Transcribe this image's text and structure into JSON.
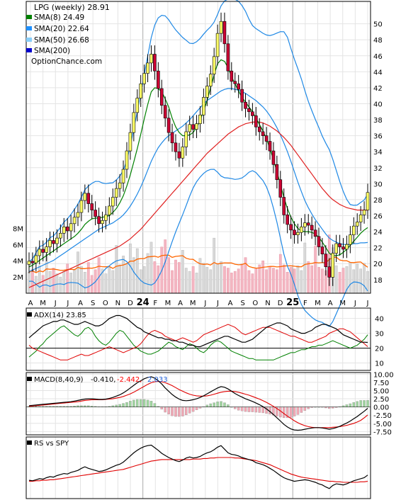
{
  "chart_data": {
    "type": "line",
    "title": "LPG (weekly) 28.91",
    "watermark": "OptionChance.com",
    "legend": [
      {
        "label": "SMA(8) 24.49",
        "color": "#008000"
      },
      {
        "label": "SMA(20) 22.64",
        "color": "#1e90ff"
      },
      {
        "label": "SMA(50) 26.68",
        "color": "#87cefa"
      },
      {
        "label": "SMA(200)",
        "color": "#0000cd"
      }
    ],
    "x_labels": [
      "A",
      "M",
      "J",
      "J",
      "A",
      "S",
      "O",
      "N",
      "D",
      "24",
      "F",
      "M",
      "A",
      "M",
      "J",
      "J",
      "A",
      "S",
      "O",
      "N",
      "D",
      "25",
      "F",
      "M",
      "A",
      "M",
      "J",
      "J"
    ],
    "year_labels": [
      "24",
      "25"
    ],
    "price_axis": {
      "ticks": [
        18,
        20,
        22,
        24,
        26,
        28,
        30,
        32,
        34,
        36,
        38,
        40,
        42,
        44,
        46,
        48,
        50
      ],
      "ylim": [
        16.3,
        52.8
      ]
    },
    "price_close": [
      20.3,
      20.1,
      21.0,
      21.8,
      21.4,
      22.1,
      22.9,
      22.5,
      23.2,
      23.8,
      24.6,
      24.1,
      25.0,
      25.8,
      26.4,
      27.9,
      28.8,
      27.5,
      26.7,
      25.9,
      25.0,
      25.4,
      26.1,
      27.2,
      28.3,
      29.4,
      30.1,
      31.8,
      34.1,
      36.4,
      38.9,
      40.7,
      42.5,
      43.8,
      45.1,
      46.2,
      44.1,
      41.9,
      39.8,
      38.2,
      36.4,
      35.1,
      34.0,
      33.2,
      34.6,
      36.5,
      37.4,
      36.8,
      37.5,
      38.6,
      40.8,
      42.2,
      43.7,
      45.9,
      48.8,
      50.3,
      47.5,
      44.1,
      42.8,
      42.5,
      41.8,
      40.2,
      39.4,
      39.0,
      38.5,
      37.1,
      36.5,
      36.0,
      35.3,
      34.1,
      32.4,
      30.5,
      28.3,
      26.1,
      24.9,
      24.2,
      23.6,
      23.9,
      24.6,
      25.1,
      24.8,
      24.2,
      23.4,
      22.1,
      21.2,
      19.6,
      18.3,
      21.3,
      22.5,
      22.1,
      21.8,
      22.4,
      23.6,
      24.7,
      25.2,
      26.1,
      26.7,
      28.9
    ],
    "sma8": [
      19.6,
      19.8,
      20.1,
      20.4,
      20.7,
      21.0,
      21.3,
      21.6,
      21.9,
      22.2,
      22.5,
      22.8,
      23.1,
      23.4,
      23.8,
      24.3,
      24.9,
      25.3,
      25.6,
      25.7,
      25.7,
      25.8,
      25.9,
      26.0,
      26.4,
      26.9,
      27.6,
      28.5,
      29.7,
      31.1,
      32.7,
      34.4,
      36.2,
      38.1,
      39.9,
      41.5,
      42.0,
      41.9,
      41.5,
      40.6,
      39.6,
      38.2,
      37.1,
      36.4,
      36.0,
      36.0,
      36.1,
      36.4,
      37.0,
      37.9,
      39.1,
      40.4,
      42.0,
      43.6,
      45.0,
      45.5,
      45.3,
      44.5,
      43.4,
      42.5,
      41.6,
      40.8,
      40.2,
      39.6,
      39.0,
      38.2,
      37.4,
      36.6,
      35.6,
      34.4,
      33.0,
      31.5,
      29.9,
      28.3,
      26.9,
      25.8,
      25.0,
      24.4,
      24.1,
      24.0,
      24.0,
      23.9,
      23.7,
      23.3,
      22.7,
      22.0,
      21.3,
      21.0,
      21.0,
      21.1,
      21.4,
      21.8,
      22.3,
      22.8,
      23.3,
      23.8,
      24.2,
      24.5
    ],
    "sma20": [
      19.0,
      19.2,
      19.4,
      19.6,
      19.8,
      20.0,
      20.2,
      20.4,
      20.7,
      21.0,
      21.3,
      21.6,
      21.9,
      22.2,
      22.5,
      22.8,
      23.1,
      23.4,
      23.7,
      24.0,
      24.3,
      24.5,
      24.7,
      24.9,
      25.1,
      25.4,
      25.7,
      26.1,
      26.6,
      27.2,
      27.9,
      28.7,
      29.6,
      30.6,
      31.7,
      32.8,
      33.7,
      34.5,
      35.1,
      35.6,
      36.0,
      36.3,
      36.6,
      36.9,
      37.2,
      37.6,
      38.0,
      38.5,
      39.0,
      39.5,
      40.0,
      40.4,
      40.7,
      41.0,
      41.3,
      41.6,
      41.8,
      41.9,
      41.9,
      41.8,
      41.7,
      41.5,
      41.3,
      41.0,
      40.7,
      40.4,
      40.0,
      39.6,
      39.1,
      38.5,
      37.8,
      37.0,
      36.1,
      35.1,
      34.0,
      32.8,
      31.5,
      30.2,
      29.0,
      27.9,
      27.0,
      26.2,
      25.5,
      24.9,
      24.3,
      23.7,
      23.2,
      22.9,
      22.7,
      22.5,
      22.4,
      22.4,
      22.4,
      22.5,
      22.5,
      22.6,
      22.6,
      22.64
    ],
    "sma50": [
      17.0,
      17.2,
      17.4,
      17.6,
      17.8,
      18.0,
      18.2,
      18.4,
      18.6,
      18.8,
      19.0,
      19.2,
      19.4,
      19.6,
      19.8,
      20.0,
      20.2,
      20.4,
      20.6,
      20.8,
      21.0,
      21.2,
      21.4,
      21.6,
      21.8,
      22.0,
      22.2,
      22.5,
      22.8,
      23.1,
      23.5,
      23.9,
      24.3,
      24.8,
      25.3,
      25.8,
      26.3,
      26.8,
      27.3,
      27.8,
      28.3,
      28.8,
      29.3,
      29.8,
      30.3,
      30.8,
      31.3,
      31.8,
      32.3,
      32.8,
      33.3,
      33.8,
      34.2,
      34.6,
      35.0,
      35.4,
      35.8,
      36.2,
      36.5,
      36.8,
      37.1,
      37.3,
      37.5,
      37.6,
      37.7,
      37.7,
      37.7,
      37.6,
      37.4,
      37.2,
      36.9,
      36.6,
      36.2,
      35.8,
      35.3,
      34.8,
      34.2,
      33.6,
      33.0,
      32.4,
      31.8,
      31.2,
      30.6,
      30.0,
      29.4,
      28.9,
      28.4,
      28.0,
      27.7,
      27.4,
      27.2,
      27.0,
      26.9,
      26.8,
      26.7,
      26.7,
      26.7,
      26.68
    ],
    "volume_axis": {
      "ticks": [
        "2M",
        "4M",
        "6M",
        "8M"
      ],
      "max": 8.3
    },
    "volume": [
      2.6,
      2.9,
      2.1,
      3.4,
      2.2,
      4.8,
      2.7,
      3.1,
      2.4,
      2.0,
      2.8,
      3.6,
      2.5,
      2.9,
      5.1,
      3.3,
      2.6,
      3.8,
      2.2,
      2.9,
      4.4,
      3.0,
      2.4,
      3.2,
      2.8,
      5.9,
      3.5,
      4.6,
      3.7,
      6.1,
      4.4,
      5.5,
      2.9,
      3.3,
      4.9,
      6.3,
      3.9,
      3.4,
      5.7,
      6.6,
      4.4,
      2.8,
      4.1,
      3.8,
      5.3,
      3.1,
      2.7,
      3.3,
      2.5,
      4.3,
      3.7,
      3.2,
      2.9,
      6.8,
      3.6,
      3.9,
      3.3,
      3.1,
      2.5,
      2.7,
      3.0,
      3.6,
      4.4,
      2.8,
      2.4,
      3.1,
      3.5,
      4.0,
      2.9,
      3.3,
      3.1,
      2.9,
      4.8,
      3.5,
      2.6,
      3.2,
      3.0,
      3.4,
      2.8,
      6.2,
      3.9,
      3.4,
      5.8,
      3.2,
      3.0,
      2.8,
      7.2,
      5.6,
      3.4,
      2.6,
      3.1,
      3.3,
      3.8,
      2.9,
      3.6,
      3.0,
      3.7,
      2.7
    ],
    "volume_avg_color": "#ff6600",
    "adx": {
      "label": "ADX(14) 23.85",
      "ticks": [
        10,
        20,
        30,
        40
      ],
      "ylim": [
        5,
        47
      ]
    },
    "adx_line": [
      27,
      29,
      31,
      33,
      35,
      36,
      37,
      38,
      38,
      39,
      39,
      38,
      37,
      36,
      36,
      37,
      38,
      37,
      36,
      35,
      35,
      36,
      38,
      40,
      41,
      42,
      42,
      41,
      40,
      38,
      36,
      34,
      33,
      31,
      30,
      29,
      28,
      27,
      27,
      26,
      26,
      25,
      25,
      24,
      24,
      23,
      22,
      22,
      21,
      21,
      22,
      23,
      24,
      25,
      26,
      27,
      28,
      28,
      27,
      26,
      25,
      24,
      24,
      25,
      26,
      28,
      30,
      32,
      34,
      35,
      36,
      37,
      37,
      36,
      35,
      33,
      32,
      31,
      30,
      30,
      31,
      32,
      34,
      35,
      36,
      36,
      35,
      34,
      33,
      31,
      29,
      28,
      27,
      26,
      25,
      24,
      24,
      23.85
    ],
    "plus_di": [
      14,
      16,
      18,
      21,
      23,
      26,
      28,
      30,
      32,
      34,
      35,
      33,
      31,
      29,
      28,
      30,
      33,
      34,
      32,
      28,
      25,
      23,
      22,
      24,
      27,
      30,
      32,
      31,
      28,
      25,
      22,
      20,
      18,
      17,
      16,
      16,
      17,
      18,
      20,
      22,
      24,
      23,
      21,
      20,
      19,
      21,
      23,
      22,
      20,
      18,
      17,
      19,
      22,
      24,
      25,
      24,
      22,
      20,
      18,
      17,
      16,
      15,
      14,
      13,
      13,
      12,
      12,
      12,
      12,
      12,
      12,
      13,
      14,
      15,
      16,
      17,
      17,
      18,
      19,
      19,
      20,
      21,
      21,
      22,
      22,
      23,
      24,
      25,
      24,
      23,
      22,
      21,
      20,
      21,
      22,
      24,
      26,
      29
    ],
    "minus_di": [
      22,
      20,
      19,
      18,
      17,
      16,
      15,
      14,
      13,
      12,
      12,
      12,
      13,
      14,
      15,
      16,
      15,
      15,
      16,
      17,
      18,
      19,
      20,
      21,
      20,
      19,
      18,
      17,
      18,
      19,
      20,
      21,
      23,
      26,
      29,
      31,
      32,
      31,
      30,
      28,
      27,
      26,
      25,
      26,
      27,
      26,
      25,
      24,
      25,
      27,
      29,
      30,
      31,
      32,
      33,
      34,
      35,
      36,
      35,
      34,
      32,
      30,
      29,
      30,
      31,
      32,
      33,
      34,
      34,
      34,
      33,
      32,
      31,
      30,
      29,
      28,
      28,
      27,
      26,
      25,
      24,
      24,
      25,
      26,
      27,
      28,
      30,
      31,
      32,
      33,
      33,
      32,
      31,
      29,
      27,
      25,
      23,
      21
    ],
    "macd": {
      "label": "MACD(8,40,9)",
      "value": "-0.410,",
      "signal": "-2.442,",
      "hist": "2.033",
      "ticks": [
        "10.00",
        "7.50",
        "5.00",
        "2.50",
        "0.00",
        "-2.50",
        "-5.00",
        "-7.50"
      ],
      "ylim": [
        -8.5,
        10.5
      ]
    },
    "macd_line": [
      0.4,
      0.5,
      0.6,
      0.7,
      0.8,
      0.9,
      1.0,
      1.1,
      1.2,
      1.3,
      1.4,
      1.5,
      1.6,
      1.8,
      2.0,
      2.2,
      2.4,
      2.5,
      2.5,
      2.4,
      2.3,
      2.3,
      2.4,
      2.6,
      2.9,
      3.3,
      3.7,
      4.3,
      5.0,
      5.8,
      6.6,
      7.4,
      8.0,
      8.6,
      9.0,
      9.2,
      8.8,
      8.0,
      7.0,
      5.8,
      4.8,
      3.8,
      3.0,
      2.4,
      2.0,
      1.9,
      2.0,
      2.2,
      2.5,
      2.9,
      3.4,
      4.0,
      4.6,
      5.2,
      5.8,
      6.2,
      6.0,
      5.5,
      4.8,
      4.1,
      3.5,
      3.0,
      2.5,
      2.1,
      1.7,
      1.2,
      0.7,
      0.1,
      -0.6,
      -1.4,
      -2.3,
      -3.3,
      -4.3,
      -5.3,
      -6.1,
      -6.7,
      -7.0,
      -7.1,
      -7.0,
      -6.8,
      -6.6,
      -6.4,
      -6.3,
      -6.3,
      -6.4,
      -6.6,
      -6.8,
      -6.6,
      -6.3,
      -5.9,
      -5.4,
      -4.9,
      -4.3,
      -3.6,
      -2.9,
      -2.1,
      -1.3,
      -0.41
    ],
    "macd_signal": [
      0.2,
      0.3,
      0.4,
      0.5,
      0.6,
      0.7,
      0.8,
      0.9,
      1.0,
      1.1,
      1.2,
      1.3,
      1.4,
      1.5,
      1.6,
      1.8,
      2.0,
      2.1,
      2.2,
      2.2,
      2.2,
      2.2,
      2.3,
      2.4,
      2.5,
      2.7,
      2.9,
      3.2,
      3.6,
      4.0,
      4.5,
      5.1,
      5.7,
      6.3,
      6.9,
      7.4,
      7.7,
      7.8,
      7.7,
      7.4,
      7.0,
      6.5,
      5.9,
      5.3,
      4.8,
      4.3,
      3.9,
      3.6,
      3.4,
      3.3,
      3.3,
      3.4,
      3.6,
      3.9,
      4.2,
      4.5,
      4.7,
      4.8,
      4.8,
      4.7,
      4.5,
      4.2,
      3.9,
      3.6,
      3.2,
      2.8,
      2.4,
      1.9,
      1.4,
      0.8,
      0.2,
      -0.5,
      -1.2,
      -2.0,
      -2.8,
      -3.5,
      -4.2,
      -4.8,
      -5.3,
      -5.7,
      -6.0,
      -6.2,
      -6.3,
      -6.3,
      -6.3,
      -6.3,
      -6.3,
      -6.2,
      -6.1,
      -6.0,
      -5.8,
      -5.6,
      -5.3,
      -5.0,
      -4.6,
      -4.1,
      -3.3,
      -2.442
    ],
    "rs": {
      "label": "RS vs SPY"
    },
    "rs_line": [
      0.3,
      0.29,
      0.31,
      0.33,
      0.32,
      0.35,
      0.37,
      0.36,
      0.39,
      0.41,
      0.43,
      0.42,
      0.45,
      0.47,
      0.49,
      0.53,
      0.56,
      0.53,
      0.51,
      0.49,
      0.47,
      0.48,
      0.5,
      0.53,
      0.56,
      0.59,
      0.61,
      0.65,
      0.71,
      0.77,
      0.83,
      0.88,
      0.92,
      0.95,
      0.97,
      0.98,
      0.93,
      0.88,
      0.82,
      0.78,
      0.74,
      0.71,
      0.68,
      0.66,
      0.69,
      0.73,
      0.75,
      0.73,
      0.74,
      0.76,
      0.8,
      0.83,
      0.85,
      0.89,
      0.94,
      0.97,
      0.9,
      0.83,
      0.8,
      0.79,
      0.77,
      0.74,
      0.72,
      0.7,
      0.68,
      0.64,
      0.62,
      0.6,
      0.57,
      0.53,
      0.49,
      0.44,
      0.39,
      0.35,
      0.32,
      0.3,
      0.28,
      0.29,
      0.3,
      0.31,
      0.3,
      0.28,
      0.26,
      0.23,
      0.21,
      0.17,
      0.14,
      0.2,
      0.23,
      0.22,
      0.21,
      0.23,
      0.26,
      0.29,
      0.31,
      0.33,
      0.35,
      0.4
    ],
    "rs_avg": [
      0.28,
      0.28,
      0.29,
      0.29,
      0.3,
      0.3,
      0.31,
      0.31,
      0.32,
      0.33,
      0.34,
      0.35,
      0.36,
      0.37,
      0.38,
      0.39,
      0.4,
      0.41,
      0.42,
      0.43,
      0.44,
      0.45,
      0.46,
      0.47,
      0.48,
      0.49,
      0.5,
      0.51,
      0.53,
      0.55,
      0.57,
      0.59,
      0.61,
      0.63,
      0.65,
      0.67,
      0.68,
      0.69,
      0.7,
      0.7,
      0.7,
      0.7,
      0.7,
      0.7,
      0.7,
      0.7,
      0.7,
      0.71,
      0.71,
      0.71,
      0.72,
      0.72,
      0.73,
      0.73,
      0.74,
      0.74,
      0.74,
      0.74,
      0.74,
      0.73,
      0.73,
      0.72,
      0.71,
      0.7,
      0.69,
      0.68,
      0.66,
      0.64,
      0.62,
      0.6,
      0.57,
      0.54,
      0.51,
      0.48,
      0.45,
      0.42,
      0.4,
      0.38,
      0.36,
      0.35,
      0.34,
      0.33,
      0.32,
      0.31,
      0.3,
      0.29,
      0.28,
      0.28,
      0.27,
      0.27,
      0.26,
      0.26,
      0.26,
      0.26,
      0.26,
      0.27,
      0.27,
      0.28
    ]
  }
}
